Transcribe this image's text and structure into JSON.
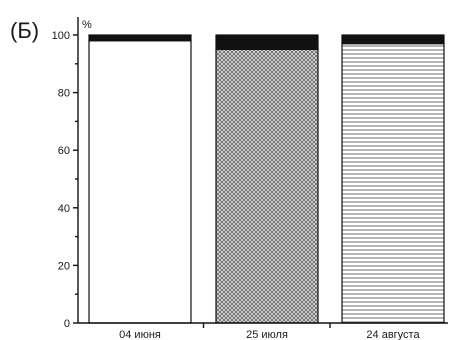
{
  "chart_data": {
    "type": "bar",
    "stacked": true,
    "panel_label": "(Б)",
    "y_unit": "%",
    "ylim": [
      0,
      100
    ],
    "yticks": [
      "0",
      "20",
      "40",
      "60",
      "80",
      "100"
    ],
    "categories": [
      "04 июня",
      "25 июля",
      "24 августа"
    ],
    "series": [
      {
        "pattern": "white",
        "values": [
          98,
          95,
          97
        ],
        "color": "#ffffff"
      },
      {
        "pattern": "solid",
        "values": [
          2,
          5,
          3
        ],
        "color": "#111111"
      }
    ],
    "segment_patterns": [
      [
        "white",
        "solid"
      ],
      [
        "crosshatch",
        "solid"
      ],
      [
        "horizontal-lines",
        "solid"
      ]
    ],
    "grid": false
  }
}
